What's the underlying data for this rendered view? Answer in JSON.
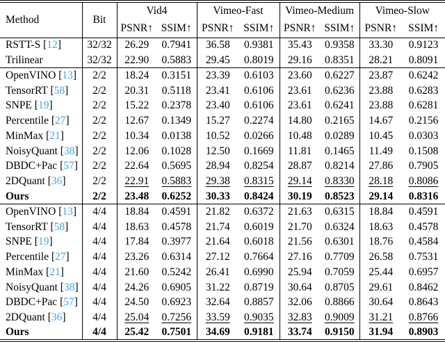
{
  "colors": {
    "citation": "#45a7db",
    "rule": "#000000",
    "background": "#ffffff"
  },
  "table": {
    "header": {
      "method": "Method",
      "bit": "Bit",
      "groups": [
        "Vid4",
        "Vimeo-Fast",
        "Vimeo-Medium",
        "Vimeo-Slow"
      ],
      "metrics": [
        "PSNR↑",
        "SSIM↑"
      ]
    },
    "sections": [
      {
        "rows": [
          {
            "method": "RSTT-S",
            "cite": "12",
            "bit": "32/32",
            "values": [
              "26.29",
              "0.7941",
              "36.58",
              "0.9381",
              "35.43",
              "0.9358",
              "33.30",
              "0.9123"
            ],
            "emphasis": "none"
          },
          {
            "method": "Trilinear",
            "cite": null,
            "bit": "32/32",
            "values": [
              "22.90",
              "0.5883",
              "29.45",
              "0.8019",
              "29.16",
              "0.8351",
              "28.21",
              "0.8091"
            ],
            "emphasis": "none"
          }
        ]
      },
      {
        "rows": [
          {
            "method": "OpenVINO",
            "cite": "13",
            "bit": "2/2",
            "values": [
              "18.24",
              "0.3151",
              "23.39",
              "0.6103",
              "23.60",
              "0.6227",
              "23.87",
              "0.6242"
            ],
            "emphasis": "none"
          },
          {
            "method": "TensorRT",
            "cite": "58",
            "bit": "2/2",
            "values": [
              "20.31",
              "0.5118",
              "23.41",
              "0.6106",
              "23.61",
              "0.6236",
              "23.88",
              "0.6283"
            ],
            "emphasis": "none"
          },
          {
            "method": "SNPE",
            "cite": "19",
            "bit": "2/2",
            "values": [
              "15.22",
              "0.2378",
              "23.40",
              "0.6106",
              "23.61",
              "0.6241",
              "23.88",
              "0.6281"
            ],
            "emphasis": "none"
          },
          {
            "method": "Percentile",
            "cite": "27",
            "bit": "2/2",
            "values": [
              "12.67",
              "0.1349",
              "15.27",
              "0.2274",
              "14.80",
              "0.2165",
              "14.67",
              "0.2156"
            ],
            "emphasis": "none"
          },
          {
            "method": "MinMax",
            "cite": "21",
            "bit": "2/2",
            "values": [
              "10.34",
              "0.0138",
              "10.52",
              "0.0266",
              "10.48",
              "0.0289",
              "10.45",
              "0.0303"
            ],
            "emphasis": "none"
          },
          {
            "method": "NoisyQuant",
            "cite": "38",
            "bit": "2/2",
            "values": [
              "12.06",
              "0.1028",
              "12.50",
              "0.1669",
              "11.81",
              "0.1465",
              "11.49",
              "0.1508"
            ],
            "emphasis": "none"
          },
          {
            "method": "DBDC+Pac",
            "cite": "57",
            "bit": "2/2",
            "values": [
              "22.64",
              "0.5695",
              "28.94",
              "0.8254",
              "28.87",
              "0.8214",
              "27.86",
              "0.7905"
            ],
            "emphasis": "none"
          },
          {
            "method": "2DQuant",
            "cite": "36",
            "bit": "2/2",
            "values": [
              "22.91",
              "0.5883",
              "29.38",
              "0.8315",
              "29.14",
              "0.8330",
              "28.18",
              "0.8086"
            ],
            "emphasis": "underline"
          },
          {
            "method": "Ours",
            "cite": null,
            "bit": "2/2",
            "values": [
              "23.48",
              "0.6252",
              "30.33",
              "0.8424",
              "30.19",
              "0.8523",
              "29.14",
              "0.8316"
            ],
            "emphasis": "bold"
          }
        ]
      },
      {
        "rows": [
          {
            "method": "OpenVINO",
            "cite": "13",
            "bit": "4/4",
            "values": [
              "18.84",
              "0.4591",
              "21.82",
              "0.6372",
              "21.63",
              "0.6315",
              "18.84",
              "0.4591"
            ],
            "emphasis": "none"
          },
          {
            "method": "TensorRT",
            "cite": "58",
            "bit": "4/4",
            "values": [
              "18.63",
              "0.4578",
              "21.74",
              "0.6019",
              "21.70",
              "0.6324",
              "18.63",
              "0.4578"
            ],
            "emphasis": "none"
          },
          {
            "method": "SNPE",
            "cite": "19",
            "bit": "4/4",
            "values": [
              "17.84",
              "0.3977",
              "21.64",
              "0.6018",
              "21.56",
              "0.6301",
              "18.76",
              "0.4584"
            ],
            "emphasis": "none"
          },
          {
            "method": "Percentile",
            "cite": "27",
            "bit": "4/4",
            "values": [
              "23.26",
              "0.6314",
              "27.12",
              "0.7664",
              "27.16",
              "0.7709",
              "26.58",
              "0.7531"
            ],
            "emphasis": "none"
          },
          {
            "method": "MinMax",
            "cite": "21",
            "bit": "4/4",
            "values": [
              "21.60",
              "0.5242",
              "26.41",
              "0.6990",
              "25.94",
              "0.7059",
              "25.44",
              "0.6957"
            ],
            "emphasis": "none"
          },
          {
            "method": "NoisyQuant",
            "cite": "38",
            "bit": "4/4",
            "values": [
              "24.26",
              "0.6905",
              "31.22",
              "0.8719",
              "30.64",
              "0.8705",
              "29.61",
              "0.8462"
            ],
            "emphasis": "none"
          },
          {
            "method": "DBDC+Pac",
            "cite": "57",
            "bit": "4/4",
            "values": [
              "24.50",
              "0.6923",
              "32.64",
              "0.8857",
              "32.06",
              "0.8866",
              "30.64",
              "0.8643"
            ],
            "emphasis": "none"
          },
          {
            "method": "2DQuant",
            "cite": "36",
            "bit": "4/4",
            "values": [
              "25.04",
              "0.7256",
              "33.59",
              "0.9035",
              "32.83",
              "0.9009",
              "31.21",
              "0.8766"
            ],
            "emphasis": "underline"
          },
          {
            "method": "Ours",
            "cite": null,
            "bit": "4/4",
            "values": [
              "25.42",
              "0.7501",
              "34.69",
              "0.9181",
              "33.74",
              "0.9150",
              "31.94",
              "0.8903"
            ],
            "emphasis": "bold"
          }
        ]
      }
    ]
  }
}
